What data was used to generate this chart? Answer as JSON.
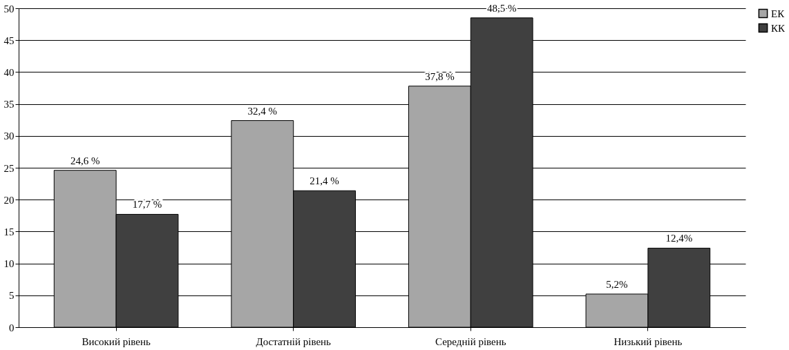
{
  "chart_data": {
    "type": "bar",
    "categories": [
      "Високий рівень",
      "Достатній рівень",
      "Середній рівень",
      "Низький рівень"
    ],
    "series": [
      {
        "name": "ЕК",
        "color": "#a6a6a6",
        "values": [
          24.6,
          32.4,
          37.8,
          5.2
        ],
        "value_labels": [
          "24,6 %",
          "32,4 %",
          "37,8 %",
          "5,2%"
        ]
      },
      {
        "name": "КК",
        "color": "#404040",
        "values": [
          17.7,
          21.4,
          48.5,
          12.4
        ],
        "value_labels": [
          "17,7 %",
          "21,4 %",
          "48,5 %",
          "12,4%"
        ]
      }
    ],
    "ylim": [
      0,
      50
    ],
    "yticks": [
      0,
      5,
      10,
      15,
      20,
      25,
      30,
      35,
      40,
      45,
      50
    ],
    "grid": "y",
    "legend": "right"
  }
}
